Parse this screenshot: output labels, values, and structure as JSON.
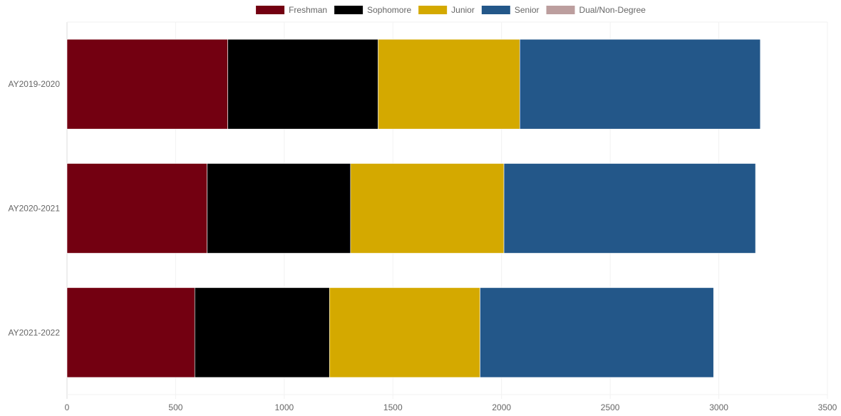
{
  "chart_data": {
    "type": "bar",
    "orientation": "horizontal",
    "stacked": true,
    "categories": [
      "AY2019-2020",
      "AY2020-2021",
      "AY2021-2022"
    ],
    "series": [
      {
        "name": "Freshman",
        "color": "#730011",
        "values": [
          740,
          645,
          588
        ]
      },
      {
        "name": "Sophomore",
        "color": "#000000",
        "values": [
          692,
          660,
          620
        ]
      },
      {
        "name": "Junior",
        "color": "#D4A900",
        "values": [
          652,
          706,
          693
        ]
      },
      {
        "name": "Senior",
        "color": "#235789",
        "values": [
          1107,
          1158,
          1075
        ]
      },
      {
        "name": "Dual/Non-Degree",
        "color": "#BC9E9E",
        "values": [
          0,
          0,
          0
        ]
      }
    ],
    "xlim": [
      0,
      3500
    ],
    "xticks": [
      0,
      500,
      1000,
      1500,
      2000,
      2500,
      3000,
      3500
    ],
    "grid": true,
    "legend_position": "top"
  }
}
